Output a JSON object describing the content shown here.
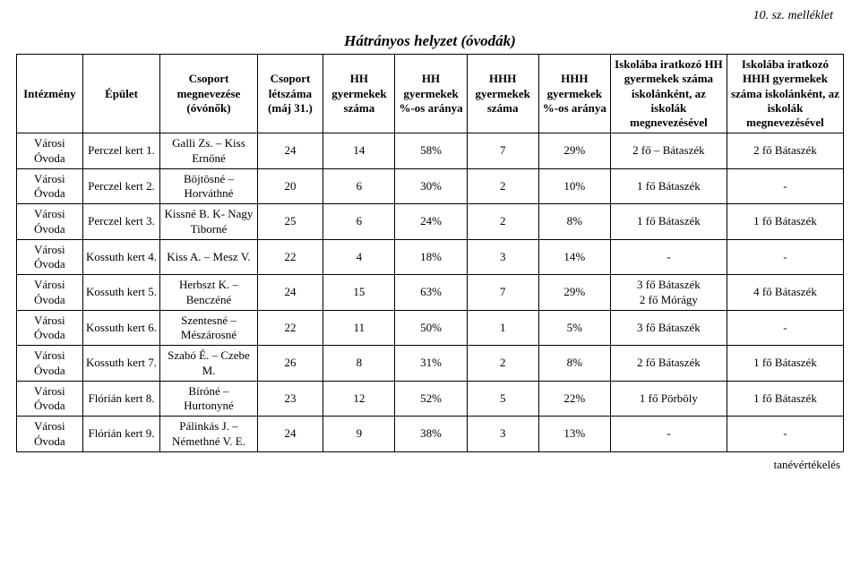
{
  "annex": "10. sz. melléklet",
  "title": "Hátrányos helyzet (óvodák)",
  "footer": "tanévértékelés",
  "columns": [
    "Intézmény",
    "Épület",
    "Csoport megnevezése (óvónők)",
    "Csoport létszáma (máj 31.)",
    "HH gyermekek száma",
    "HH gyermekek %-os aránya",
    "HHH gyermekek száma",
    "HHH gyermekek %-os aránya",
    "Iskolába iratkozó HH gyermekek száma iskolánként, az iskolák megnevezésével",
    "Iskolába iratkozó HHH gyermekek száma iskolánként, az iskolák megnevezésével"
  ],
  "rows": [
    {
      "c0": "Városi Óvoda",
      "c1": "Perczel kert 1.",
      "c2": "Galli Zs. – Kiss Ernőné",
      "c3": "24",
      "c4": "14",
      "c5": "58%",
      "c6": "7",
      "c7": "29%",
      "c8": "2 fő – Bátaszék",
      "c9": "2 fő Bátaszék"
    },
    {
      "c0": "Városi Óvoda",
      "c1": "Perczel kert 2.",
      "c2": "Böjtösné – Horváthné",
      "c3": "20",
      "c4": "6",
      "c5": "30%",
      "c6": "2",
      "c7": "10%",
      "c8": "1 fő Bátaszék",
      "c9": "-"
    },
    {
      "c0": "Városi Óvoda",
      "c1": "Perczel kert 3.",
      "c2": "Kissné B. K- Nagy Tiborné",
      "c3": "25",
      "c4": "6",
      "c5": "24%",
      "c6": "2",
      "c7": "8%",
      "c8": "1 fő Bátaszék",
      "c9": "1 fő Bátaszék"
    },
    {
      "c0": "Városi Óvoda",
      "c1": "Kossuth kert 4.",
      "c2": "Kiss A. – Mesz V.",
      "c3": "22",
      "c4": "4",
      "c5": "18%",
      "c6": "3",
      "c7": "14%",
      "c8": "-",
      "c9": "-"
    },
    {
      "c0": "Városi Óvoda",
      "c1": "Kossuth kert 5.",
      "c2": "Herbszt K. – Benczéné",
      "c3": "24",
      "c4": "15",
      "c5": "63%",
      "c6": "7",
      "c7": "29%",
      "c8": "3 fő Bátaszék\n2 fő Mórágy",
      "c9": "4 fő Bátaszék"
    },
    {
      "c0": "Városi Óvoda",
      "c1": "Kossuth kert 6.",
      "c2": "Szentesné – Mészárosné",
      "c3": "22",
      "c4": "11",
      "c5": "50%",
      "c6": "1",
      "c7": "5%",
      "c8": "3 fő Bátaszék",
      "c9": "-"
    },
    {
      "c0": "Városi Óvoda",
      "c1": "Kossuth kert 7.",
      "c2": "Szabó É. – Czebe M.",
      "c3": "26",
      "c4": "8",
      "c5": "31%",
      "c6": "2",
      "c7": "8%",
      "c8": "2 fő Bátaszék",
      "c9": "1 fő Bátaszék"
    },
    {
      "c0": "Városi Óvoda",
      "c1": "Flórián kert 8.",
      "c2": "Bíróné – Hurtonyné",
      "c3": "23",
      "c4": "12",
      "c5": "52%",
      "c6": "5",
      "c7": "22%",
      "c8": "1 fő Pörböly",
      "c9": "1 fő Bátaszék"
    },
    {
      "c0": "Városi Óvoda",
      "c1": "Flórián kert 9.",
      "c2": "Pálinkás J. – Némethné V. E.",
      "c3": "24",
      "c4": "9",
      "c5": "38%",
      "c6": "3",
      "c7": "13%",
      "c8": "-",
      "c9": "-"
    }
  ],
  "style": {
    "font_family": "Times New Roman",
    "border_color": "#000000",
    "background_color": "#ffffff",
    "text_color": "#000000",
    "title_fontsize_pt": 13,
    "header_fontsize_pt": 10,
    "cell_fontsize_pt": 10,
    "title_italic": true,
    "title_bold": true,
    "annex_italic": true
  }
}
